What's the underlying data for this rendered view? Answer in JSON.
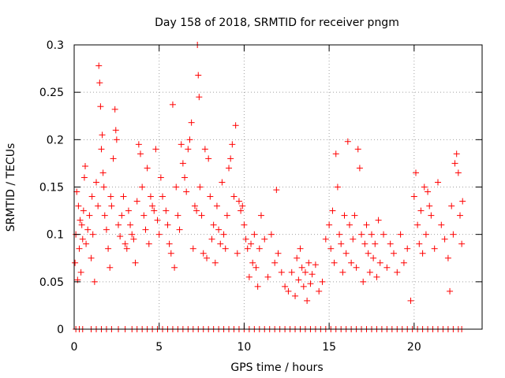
{
  "chart_data": {
    "type": "scatter",
    "title": "Day 158 of 2018, SRMTID for receiver pngm",
    "xlabel": "GPS time / hours",
    "ylabel": "SRMTID / TECUs",
    "xlim": [
      0,
      24
    ],
    "ylim": [
      0,
      0.3
    ],
    "x_ticks": [
      0,
      5,
      10,
      15,
      20
    ],
    "x_tick_labels": [
      "0",
      "5",
      "10",
      "15",
      "20"
    ],
    "y_ticks": [
      0,
      0.05,
      0.1,
      0.15,
      0.2,
      0.25,
      0.3
    ],
    "y_tick_labels": [
      "0",
      "0.05",
      "0.1",
      "0.15",
      "0.2",
      "0.25",
      "0.3"
    ],
    "grid": true,
    "marker": "+",
    "color": "#ff0000",
    "series": [
      {
        "name": "SRMTID",
        "points": [
          [
            0.05,
            0.07
          ],
          [
            0.1,
            0.1
          ],
          [
            0.15,
            0.145
          ],
          [
            0.2,
            0.052
          ],
          [
            0.25,
            0.13
          ],
          [
            0.3,
            0.085
          ],
          [
            0.35,
            0.115
          ],
          [
            0.4,
            0.06
          ],
          [
            0.45,
            0.11
          ],
          [
            0.5,
            0.095
          ],
          [
            0.55,
            0.125
          ],
          [
            0.6,
            0.16
          ],
          [
            0.65,
            0.172
          ],
          [
            0.7,
            0.09
          ],
          [
            0.8,
            0.105
          ],
          [
            0.9,
            0.12
          ],
          [
            1.0,
            0.075
          ],
          [
            1.05,
            0.14
          ],
          [
            1.1,
            0.1
          ],
          [
            1.2,
            0.05
          ],
          [
            1.3,
            0.155
          ],
          [
            1.4,
            0.13
          ],
          [
            1.45,
            0.278
          ],
          [
            1.5,
            0.26
          ],
          [
            1.55,
            0.235
          ],
          [
            1.6,
            0.19
          ],
          [
            1.65,
            0.205
          ],
          [
            1.7,
            0.165
          ],
          [
            1.75,
            0.15
          ],
          [
            1.8,
            0.12
          ],
          [
            1.9,
            0.105
          ],
          [
            2.0,
            0.085
          ],
          [
            2.1,
            0.065
          ],
          [
            2.15,
            0.14
          ],
          [
            2.2,
            0.13
          ],
          [
            2.3,
            0.18
          ],
          [
            2.4,
            0.232
          ],
          [
            2.45,
            0.21
          ],
          [
            2.5,
            0.2
          ],
          [
            2.6,
            0.11
          ],
          [
            2.7,
            0.098
          ],
          [
            2.8,
            0.12
          ],
          [
            2.9,
            0.14
          ],
          [
            3.0,
            0.09
          ],
          [
            3.1,
            0.085
          ],
          [
            3.2,
            0.125
          ],
          [
            3.3,
            0.11
          ],
          [
            3.4,
            0.1
          ],
          [
            3.5,
            0.095
          ],
          [
            3.6,
            0.07
          ],
          [
            3.7,
            0.135
          ],
          [
            3.8,
            0.195
          ],
          [
            3.9,
            0.185
          ],
          [
            4.0,
            0.15
          ],
          [
            4.1,
            0.12
          ],
          [
            4.2,
            0.105
          ],
          [
            4.3,
            0.17
          ],
          [
            4.4,
            0.09
          ],
          [
            4.5,
            0.14
          ],
          [
            4.6,
            0.13
          ],
          [
            4.7,
            0.125
          ],
          [
            4.8,
            0.19
          ],
          [
            4.9,
            0.115
          ],
          [
            5.0,
            0.1
          ],
          [
            5.1,
            0.16
          ],
          [
            5.2,
            0.14
          ],
          [
            5.4,
            0.125
          ],
          [
            5.5,
            0.11
          ],
          [
            5.6,
            0.09
          ],
          [
            5.7,
            0.08
          ],
          [
            5.8,
            0.237
          ],
          [
            5.9,
            0.065
          ],
          [
            6.0,
            0.15
          ],
          [
            6.1,
            0.12
          ],
          [
            6.2,
            0.105
          ],
          [
            6.3,
            0.195
          ],
          [
            6.4,
            0.175
          ],
          [
            6.5,
            0.16
          ],
          [
            6.6,
            0.145
          ],
          [
            6.7,
            0.19
          ],
          [
            6.8,
            0.2
          ],
          [
            6.9,
            0.218
          ],
          [
            7.0,
            0.085
          ],
          [
            7.1,
            0.13
          ],
          [
            7.2,
            0.125
          ],
          [
            7.25,
            0.3
          ],
          [
            7.3,
            0.268
          ],
          [
            7.35,
            0.245
          ],
          [
            7.4,
            0.15
          ],
          [
            7.5,
            0.12
          ],
          [
            7.6,
            0.08
          ],
          [
            7.7,
            0.19
          ],
          [
            7.8,
            0.075
          ],
          [
            7.9,
            0.18
          ],
          [
            8.0,
            0.14
          ],
          [
            8.1,
            0.095
          ],
          [
            8.2,
            0.11
          ],
          [
            8.3,
            0.07
          ],
          [
            8.4,
            0.13
          ],
          [
            8.5,
            0.105
          ],
          [
            8.6,
            0.09
          ],
          [
            8.7,
            0.155
          ],
          [
            8.8,
            0.1
          ],
          [
            8.9,
            0.085
          ],
          [
            9.0,
            0.12
          ],
          [
            9.1,
            0.17
          ],
          [
            9.2,
            0.18
          ],
          [
            9.3,
            0.195
          ],
          [
            9.4,
            0.14
          ],
          [
            9.5,
            0.215
          ],
          [
            9.6,
            0.08
          ],
          [
            9.7,
            0.135
          ],
          [
            9.8,
            0.125
          ],
          [
            9.9,
            0.13
          ],
          [
            10.0,
            0.11
          ],
          [
            10.1,
            0.095
          ],
          [
            10.2,
            0.085
          ],
          [
            10.3,
            0.055
          ],
          [
            10.4,
            0.09
          ],
          [
            10.5,
            0.07
          ],
          [
            10.6,
            0.1
          ],
          [
            10.7,
            0.065
          ],
          [
            10.8,
            0.045
          ],
          [
            10.9,
            0.085
          ],
          [
            11.0,
            0.12
          ],
          [
            11.2,
            0.095
          ],
          [
            11.4,
            0.055
          ],
          [
            11.6,
            0.1
          ],
          [
            11.8,
            0.07
          ],
          [
            11.9,
            0.147
          ],
          [
            12.0,
            0.08
          ],
          [
            12.2,
            0.06
          ],
          [
            12.4,
            0.045
          ],
          [
            12.6,
            0.04
          ],
          [
            12.8,
            0.06
          ],
          [
            13.0,
            0.035
          ],
          [
            13.1,
            0.075
          ],
          [
            13.2,
            0.052
          ],
          [
            13.3,
            0.085
          ],
          [
            13.4,
            0.065
          ],
          [
            13.5,
            0.045
          ],
          [
            13.6,
            0.06
          ],
          [
            13.7,
            0.03
          ],
          [
            13.8,
            0.07
          ],
          [
            13.9,
            0.048
          ],
          [
            14.0,
            0.058
          ],
          [
            14.2,
            0.068
          ],
          [
            14.4,
            0.04
          ],
          [
            14.6,
            0.05
          ],
          [
            14.8,
            0.095
          ],
          [
            15.0,
            0.11
          ],
          [
            15.1,
            0.085
          ],
          [
            15.2,
            0.125
          ],
          [
            15.3,
            0.07
          ],
          [
            15.4,
            0.185
          ],
          [
            15.5,
            0.15
          ],
          [
            15.6,
            0.1
          ],
          [
            15.7,
            0.09
          ],
          [
            15.8,
            0.06
          ],
          [
            15.9,
            0.12
          ],
          [
            16.0,
            0.08
          ],
          [
            16.1,
            0.198
          ],
          [
            16.2,
            0.11
          ],
          [
            16.3,
            0.07
          ],
          [
            16.4,
            0.095
          ],
          [
            16.5,
            0.12
          ],
          [
            16.6,
            0.065
          ],
          [
            16.7,
            0.19
          ],
          [
            16.8,
            0.17
          ],
          [
            16.9,
            0.1
          ],
          [
            17.0,
            0.05
          ],
          [
            17.1,
            0.09
          ],
          [
            17.2,
            0.11
          ],
          [
            17.3,
            0.08
          ],
          [
            17.4,
            0.06
          ],
          [
            17.5,
            0.1
          ],
          [
            17.6,
            0.075
          ],
          [
            17.7,
            0.09
          ],
          [
            17.8,
            0.055
          ],
          [
            17.9,
            0.115
          ],
          [
            18.0,
            0.07
          ],
          [
            18.2,
            0.1
          ],
          [
            18.4,
            0.065
          ],
          [
            18.6,
            0.09
          ],
          [
            18.8,
            0.08
          ],
          [
            19.0,
            0.06
          ],
          [
            19.2,
            0.1
          ],
          [
            19.4,
            0.07
          ],
          [
            19.6,
            0.085
          ],
          [
            19.8,
            0.03
          ],
          [
            20.0,
            0.14
          ],
          [
            20.1,
            0.165
          ],
          [
            20.2,
            0.11
          ],
          [
            20.3,
            0.09
          ],
          [
            20.4,
            0.125
          ],
          [
            20.5,
            0.08
          ],
          [
            20.6,
            0.15
          ],
          [
            20.7,
            0.1
          ],
          [
            20.8,
            0.145
          ],
          [
            20.9,
            0.13
          ],
          [
            21.0,
            0.12
          ],
          [
            21.2,
            0.085
          ],
          [
            21.4,
            0.155
          ],
          [
            21.6,
            0.11
          ],
          [
            21.8,
            0.095
          ],
          [
            22.0,
            0.075
          ],
          [
            22.1,
            0.04
          ],
          [
            22.2,
            0.13
          ],
          [
            22.3,
            0.1
          ],
          [
            22.4,
            0.175
          ],
          [
            22.5,
            0.185
          ],
          [
            22.6,
            0.165
          ],
          [
            22.7,
            0.12
          ],
          [
            22.8,
            0.09
          ],
          [
            22.85,
            0.135
          ]
        ],
        "zero_points_x": [
          0.1,
          0.3,
          0.5,
          1.0,
          1.3,
          1.6,
          1.9,
          2.2,
          2.6,
          3.0,
          3.4,
          3.7,
          4.0,
          4.3,
          4.6,
          4.9,
          5.2,
          5.5,
          5.8,
          6.1,
          6.4,
          6.7,
          7.0,
          7.3,
          7.6,
          7.9,
          8.2,
          8.5,
          8.8,
          9.1,
          9.4,
          9.7,
          10.0,
          10.3,
          10.6,
          10.9,
          11.2,
          11.5,
          11.8,
          12.1,
          12.4,
          12.7,
          13.0,
          13.3,
          13.6,
          13.9,
          14.2,
          14.5,
          14.8,
          15.1,
          15.4,
          15.7,
          16.0,
          16.3,
          16.6,
          16.9,
          17.2,
          17.5,
          17.8,
          18.1,
          18.4,
          18.7,
          19.0,
          19.3,
          19.6,
          19.9,
          20.2,
          20.5,
          20.8,
          21.1,
          21.4,
          21.7,
          22.0,
          22.3,
          22.6,
          22.8
        ]
      }
    ]
  }
}
